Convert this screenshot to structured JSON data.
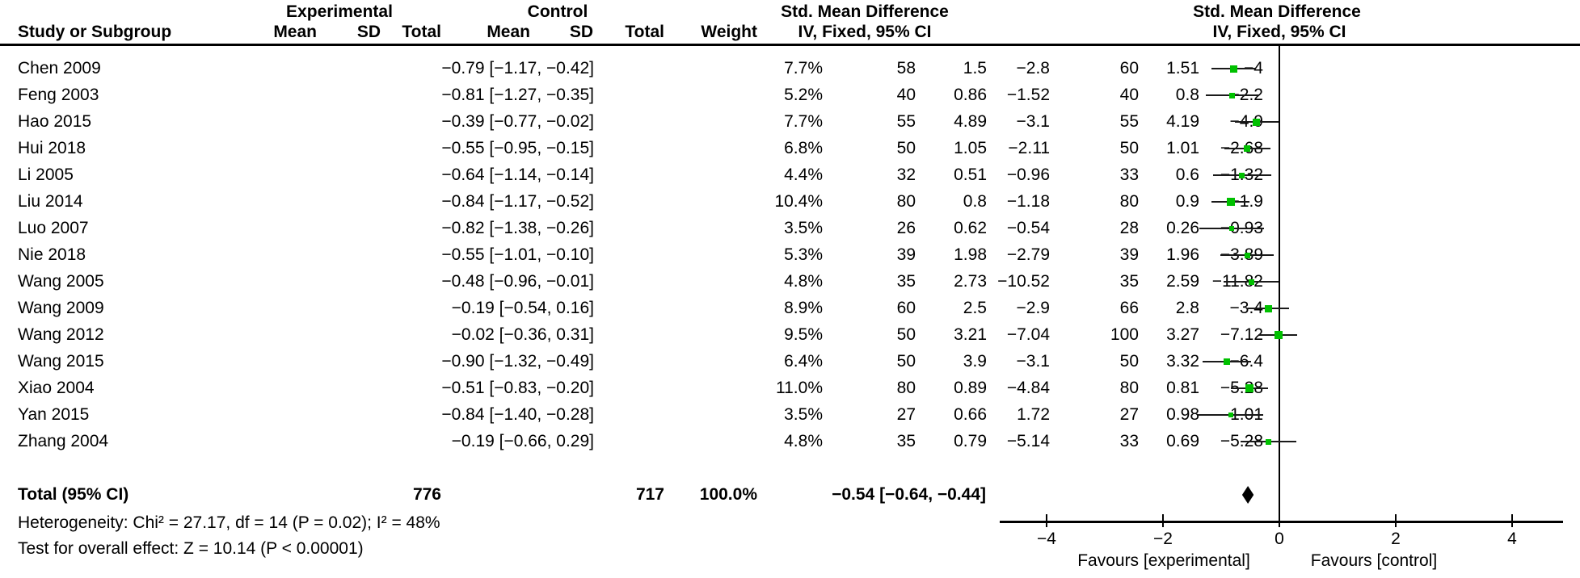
{
  "header": {
    "study_col": "Study or Subgroup",
    "group_experimental": "Experimental",
    "group_control": "Control",
    "mean": "Mean",
    "sd": "SD",
    "total": "Total",
    "weight": "Weight",
    "effect_title": "Std. Mean Difference",
    "effect_subtitle": "IV, Fixed, 95% CI",
    "plot_title": "Std. Mean Difference",
    "plot_subtitle": "IV, Fixed, 95% CI"
  },
  "colors": {
    "marker_green": "#00c000",
    "line_black": "#000000"
  },
  "chart_data": {
    "type": "forest",
    "effect_measure": "Std. Mean Difference",
    "method": "IV, Fixed, 95% CI",
    "x_axis": {
      "min": -4.8,
      "max": 4.85,
      "ticks": [
        {
          "v": -4,
          "label": "−4"
        },
        {
          "v": -2,
          "label": "−2"
        },
        {
          "v": 0,
          "label": "0"
        },
        {
          "v": 2,
          "label": "2"
        },
        {
          "v": 4,
          "label": "4"
        }
      ],
      "label_left": "Favours [experimental]",
      "label_right": "Favours [control]"
    },
    "studies": [
      {
        "name": "Chen 2009",
        "exp_mean": "−4",
        "exp_sd": "1.51",
        "exp_total": "60",
        "ctl_mean": "−2.8",
        "ctl_sd": "1.5",
        "ctl_total": "58",
        "weight": "7.7%",
        "w": 7.7,
        "ci_text": "−0.79 [−1.17, −0.42]",
        "est": -0.79,
        "lo": -1.17,
        "hi": -0.42
      },
      {
        "name": "Feng 2003",
        "exp_mean": "−2.2",
        "exp_sd": "0.8",
        "exp_total": "40",
        "ctl_mean": "−1.52",
        "ctl_sd": "0.86",
        "ctl_total": "40",
        "weight": "5.2%",
        "w": 5.2,
        "ci_text": "−0.81 [−1.27, −0.35]",
        "est": -0.81,
        "lo": -1.27,
        "hi": -0.35
      },
      {
        "name": "Hao 2015",
        "exp_mean": "−4.9",
        "exp_sd": "4.19",
        "exp_total": "55",
        "ctl_mean": "−3.1",
        "ctl_sd": "4.89",
        "ctl_total": "55",
        "weight": "7.7%",
        "w": 7.7,
        "ci_text": "−0.39 [−0.77, −0.02]",
        "est": -0.39,
        "lo": -0.77,
        "hi": -0.02
      },
      {
        "name": "Hui 2018",
        "exp_mean": "−2.68",
        "exp_sd": "1.01",
        "exp_total": "50",
        "ctl_mean": "−2.11",
        "ctl_sd": "1.05",
        "ctl_total": "50",
        "weight": "6.8%",
        "w": 6.8,
        "ci_text": "−0.55 [−0.95, −0.15]",
        "est": -0.55,
        "lo": -0.95,
        "hi": -0.15
      },
      {
        "name": "Li 2005",
        "exp_mean": "−1.32",
        "exp_sd": "0.6",
        "exp_total": "33",
        "ctl_mean": "−0.96",
        "ctl_sd": "0.51",
        "ctl_total": "32",
        "weight": "4.4%",
        "w": 4.4,
        "ci_text": "−0.64 [−1.14, −0.14]",
        "est": -0.64,
        "lo": -1.14,
        "hi": -0.14
      },
      {
        "name": "Liu 2014",
        "exp_mean": "−1.9",
        "exp_sd": "0.9",
        "exp_total": "80",
        "ctl_mean": "−1.18",
        "ctl_sd": "0.8",
        "ctl_total": "80",
        "weight": "10.4%",
        "w": 10.4,
        "ci_text": "−0.84 [−1.17, −0.52]",
        "est": -0.84,
        "lo": -1.17,
        "hi": -0.52
      },
      {
        "name": "Luo 2007",
        "exp_mean": "−0.93",
        "exp_sd": "0.26",
        "exp_total": "28",
        "ctl_mean": "−0.54",
        "ctl_sd": "0.62",
        "ctl_total": "26",
        "weight": "3.5%",
        "w": 3.5,
        "ci_text": "−0.82 [−1.38, −0.26]",
        "est": -0.82,
        "lo": -1.38,
        "hi": -0.26
      },
      {
        "name": "Nie 2018",
        "exp_mean": "−3.89",
        "exp_sd": "1.96",
        "exp_total": "39",
        "ctl_mean": "−2.79",
        "ctl_sd": "1.98",
        "ctl_total": "39",
        "weight": "5.3%",
        "w": 5.3,
        "ci_text": "−0.55 [−1.01, −0.10]",
        "est": -0.55,
        "lo": -1.01,
        "hi": -0.1
      },
      {
        "name": "Wang 2005",
        "exp_mean": "−11.82",
        "exp_sd": "2.59",
        "exp_total": "35",
        "ctl_mean": "−10.52",
        "ctl_sd": "2.73",
        "ctl_total": "35",
        "weight": "4.8%",
        "w": 4.8,
        "ci_text": "−0.48 [−0.96, −0.01]",
        "est": -0.48,
        "lo": -0.96,
        "hi": -0.01
      },
      {
        "name": "Wang 2009",
        "exp_mean": "−3.4",
        "exp_sd": "2.8",
        "exp_total": "66",
        "ctl_mean": "−2.9",
        "ctl_sd": "2.5",
        "ctl_total": "60",
        "weight": "8.9%",
        "w": 8.9,
        "ci_text": "−0.19 [−0.54, 0.16]",
        "est": -0.19,
        "lo": -0.54,
        "hi": 0.16
      },
      {
        "name": "Wang 2012",
        "exp_mean": "−7.12",
        "exp_sd": "3.27",
        "exp_total": "100",
        "ctl_mean": "−7.04",
        "ctl_sd": "3.21",
        "ctl_total": "50",
        "weight": "9.5%",
        "w": 9.5,
        "ci_text": "−0.02 [−0.36, 0.31]",
        "est": -0.02,
        "lo": -0.36,
        "hi": 0.31
      },
      {
        "name": "Wang 2015",
        "exp_mean": "−6.4",
        "exp_sd": "3.32",
        "exp_total": "50",
        "ctl_mean": "−3.1",
        "ctl_sd": "3.9",
        "ctl_total": "50",
        "weight": "6.4%",
        "w": 6.4,
        "ci_text": "−0.90 [−1.32, −0.49]",
        "est": -0.9,
        "lo": -1.32,
        "hi": -0.49
      },
      {
        "name": "Xiao 2004",
        "exp_mean": "−5.28",
        "exp_sd": "0.81",
        "exp_total": "80",
        "ctl_mean": "−4.84",
        "ctl_sd": "0.89",
        "ctl_total": "80",
        "weight": "11.0%",
        "w": 11.0,
        "ci_text": "−0.51 [−0.83, −0.20]",
        "est": -0.51,
        "lo": -0.83,
        "hi": -0.2
      },
      {
        "name": "Yan 2015",
        "exp_mean": "1.01",
        "exp_sd": "0.98",
        "exp_total": "27",
        "ctl_mean": "1.72",
        "ctl_sd": "0.66",
        "ctl_total": "27",
        "weight": "3.5%",
        "w": 3.5,
        "ci_text": "−0.84 [−1.40, −0.28]",
        "est": -0.84,
        "lo": -1.4,
        "hi": -0.28
      },
      {
        "name": "Zhang 2004",
        "exp_mean": "−5.28",
        "exp_sd": "0.69",
        "exp_total": "33",
        "ctl_mean": "−5.14",
        "ctl_sd": "0.79",
        "ctl_total": "35",
        "weight": "4.8%",
        "w": 4.8,
        "ci_text": "−0.19 [−0.66, 0.29]",
        "est": -0.19,
        "lo": -0.66,
        "hi": 0.29
      }
    ],
    "total": {
      "label": "Total (95% CI)",
      "exp_total": "776",
      "ctl_total": "717",
      "weight": "100.0%",
      "ci_text": "−0.54 [−0.64, −0.44]",
      "est": -0.54,
      "lo": -0.64,
      "hi": -0.44
    },
    "heterogeneity": "Heterogeneity: Chi² = 27.17, df = 14 (P = 0.02); I² = 48%",
    "overall_effect": "Test for overall effect: Z = 10.14 (P < 0.00001)"
  }
}
